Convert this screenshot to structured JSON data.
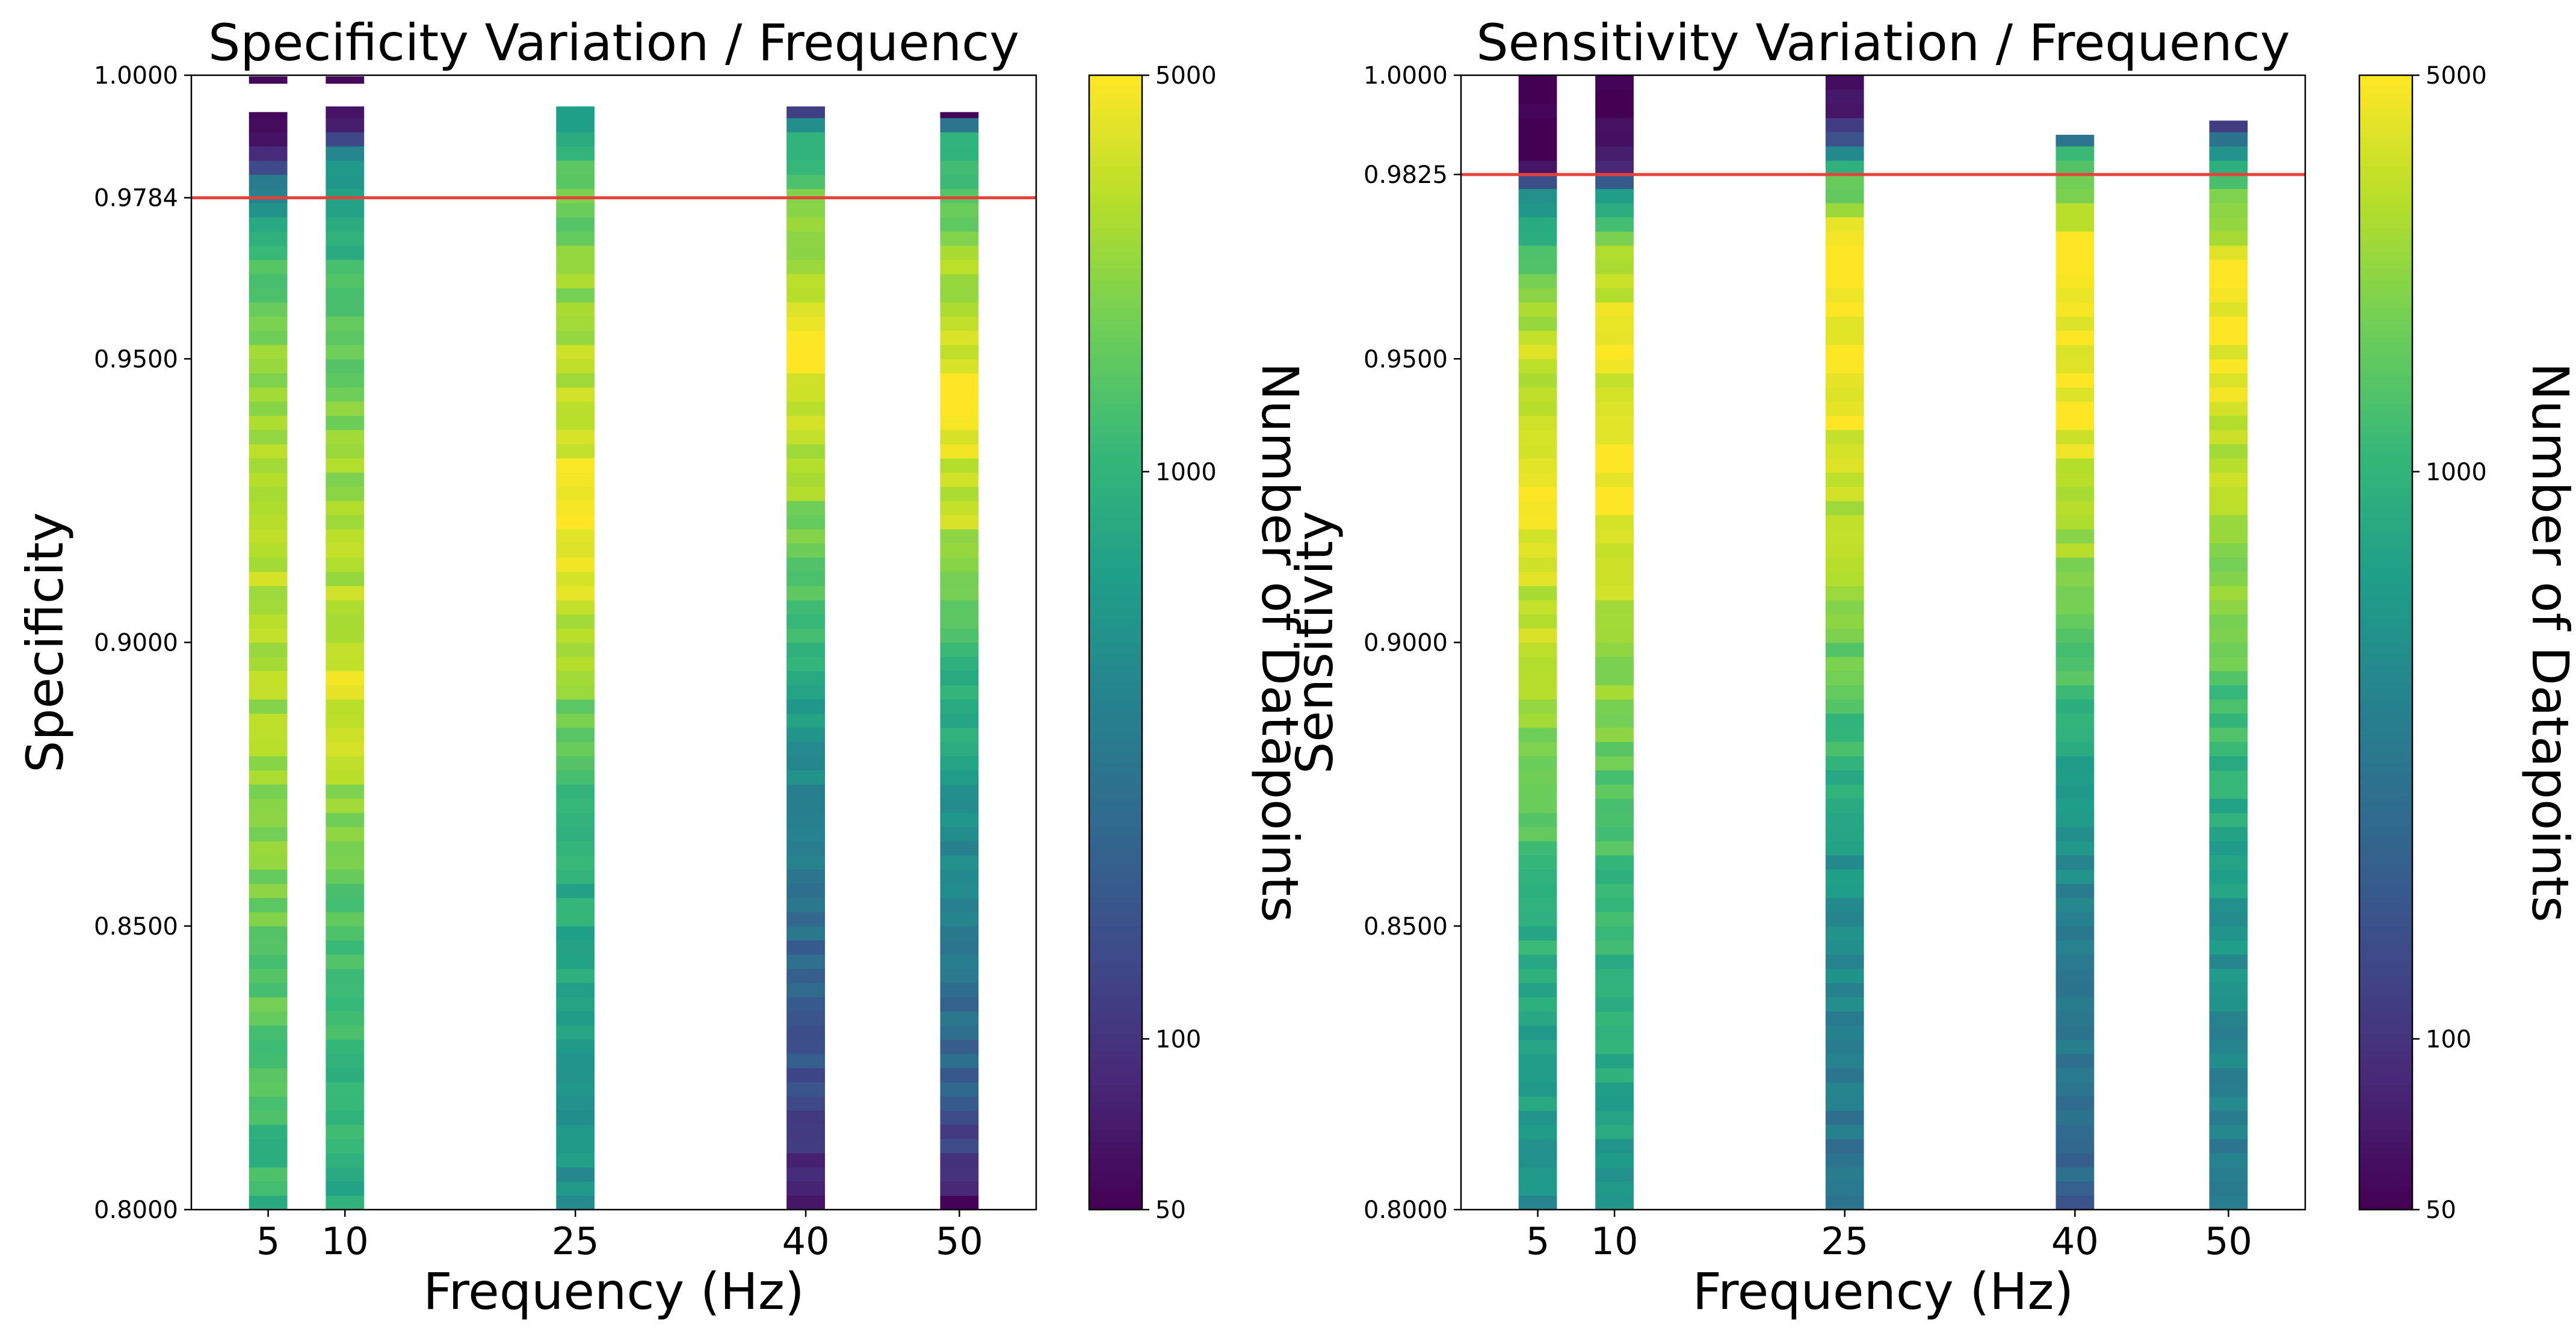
{
  "chart_data": [
    {
      "type": "heatmap",
      "title": "Specificity Variation / Frequency",
      "xlabel": "Frequency (Hz)",
      "ylabel": "Specificity",
      "colorbar_label": "Number of Datapoints",
      "colorbar_scale": "log",
      "colorbar_range": [
        50,
        5000
      ],
      "colorbar_ticks": [
        "50",
        "100",
        "1000",
        "5000"
      ],
      "colormap": "viridis",
      "x_ticks": [
        "5",
        "10",
        "25",
        "40",
        "50"
      ],
      "x_values": [
        5,
        10,
        25,
        40,
        50
      ],
      "xlim": [
        0,
        55
      ],
      "ylim": [
        0.8,
        1.0
      ],
      "y_ticks": [
        "0.8000",
        "0.8500",
        "0.9000",
        "0.9500",
        "0.9784",
        "1.0000"
      ],
      "reference_line": {
        "value": 0.9784,
        "color": "#e8413a"
      },
      "columns": [
        {
          "frequency": 5,
          "bin_width_hz": 2.5,
          "top": 0.9935,
          "count_profile": [
            [
              0.8,
              1000
            ],
            [
              0.85,
              1700
            ],
            [
              0.9,
              3000
            ],
            [
              0.94,
              2800
            ],
            [
              0.97,
              1300
            ],
            [
              0.982,
              300
            ],
            [
              0.987,
              60
            ]
          ],
          "islands": [
            {
              "from": 0.9985,
              "to": 0.9998,
              "count": 55
            }
          ]
        },
        {
          "frequency": 10,
          "bin_width_hz": 2.5,
          "top": 0.9945,
          "count_profile": [
            [
              0.8,
              800
            ],
            [
              0.85,
              1400
            ],
            [
              0.89,
              3800
            ],
            [
              0.93,
              2500
            ],
            [
              0.965,
              1100
            ],
            [
              0.985,
              500
            ],
            [
              0.992,
              70
            ]
          ],
          "islands": [
            {
              "from": 0.9985,
              "to": 0.9998,
              "count": 55
            }
          ]
        },
        {
          "frequency": 25,
          "bin_width_hz": 2.5,
          "top": 0.9945,
          "count_profile": [
            [
              0.8,
              500
            ],
            [
              0.87,
              1000
            ],
            [
              0.9,
              2800
            ],
            [
              0.92,
              4800
            ],
            [
              0.95,
              3000
            ],
            [
              0.98,
              1600
            ],
            [
              0.994,
              700
            ]
          ],
          "islands": []
        },
        {
          "frequency": 40,
          "bin_width_hz": 2.5,
          "top": 0.9945,
          "count_profile": [
            [
              0.8,
              60
            ],
            [
              0.82,
              150
            ],
            [
              0.86,
              300
            ],
            [
              0.9,
              1000
            ],
            [
              0.93,
              2800
            ],
            [
              0.95,
              5000
            ],
            [
              0.972,
              2500
            ],
            [
              0.99,
              800
            ],
            [
              0.9945,
              60
            ]
          ],
          "islands": []
        },
        {
          "frequency": 50,
          "bin_width_hz": 2.5,
          "top": 0.9935,
          "count_profile": [
            [
              0.8,
              60
            ],
            [
              0.82,
              200
            ],
            [
              0.86,
              400
            ],
            [
              0.9,
              1200
            ],
            [
              0.92,
              3000
            ],
            [
              0.945,
              4800
            ],
            [
              0.97,
              2200
            ],
            [
              0.99,
              900
            ],
            [
              0.9935,
              60
            ]
          ],
          "islands": []
        }
      ]
    },
    {
      "type": "heatmap",
      "title": "Sensitivity Variation / Frequency",
      "xlabel": "Frequency (Hz)",
      "ylabel": "Sensitivity",
      "colorbar_label": "Number of Datapoints",
      "colorbar_scale": "log",
      "colorbar_range": [
        50,
        5000
      ],
      "colorbar_ticks": [
        "50",
        "100",
        "1000",
        "5000"
      ],
      "colormap": "viridis",
      "x_ticks": [
        "5",
        "10",
        "25",
        "40",
        "50"
      ],
      "x_values": [
        5,
        10,
        25,
        40,
        50
      ],
      "xlim": [
        0,
        55
      ],
      "ylim": [
        0.8,
        1.0
      ],
      "y_ticks": [
        "0.8000",
        "0.8500",
        "0.9000",
        "0.9500",
        "0.9825",
        "1.0000"
      ],
      "reference_line": {
        "value": 0.9825,
        "color": "#e8413a"
      },
      "columns": [
        {
          "frequency": 5,
          "bin_width_hz": 2.5,
          "top": 1.0,
          "count_profile": [
            [
              0.8,
              500
            ],
            [
              0.86,
              1100
            ],
            [
              0.9,
              3000
            ],
            [
              0.93,
              4500
            ],
            [
              0.96,
              2800
            ],
            [
              0.978,
              600
            ],
            [
              0.984,
              50
            ],
            [
              1.0,
              50
            ]
          ],
          "islands": []
        },
        {
          "frequency": 10,
          "bin_width_hz": 2.5,
          "top": 1.0,
          "count_profile": [
            [
              0.8,
              600
            ],
            [
              0.86,
              1100
            ],
            [
              0.9,
              2600
            ],
            [
              0.93,
              5000
            ],
            [
              0.965,
              3500
            ],
            [
              0.978,
              900
            ],
            [
              0.984,
              60
            ],
            [
              1.0,
              50
            ]
          ],
          "islands": []
        },
        {
          "frequency": 25,
          "bin_width_hz": 2.5,
          "top": 1.0,
          "count_profile": [
            [
              0.8,
              250
            ],
            [
              0.86,
              550
            ],
            [
              0.9,
              1800
            ],
            [
              0.94,
              4500
            ],
            [
              0.97,
              5000
            ],
            [
              0.982,
              1500
            ],
            [
              0.99,
              100
            ],
            [
              1.0,
              50
            ]
          ],
          "islands": []
        },
        {
          "frequency": 40,
          "bin_width_hz": 2.5,
          "top": 0.9895,
          "count_profile": [
            [
              0.8,
              200
            ],
            [
              0.86,
              450
            ],
            [
              0.9,
              1600
            ],
            [
              0.94,
              4500
            ],
            [
              0.97,
              5000
            ],
            [
              0.985,
              1500
            ],
            [
              0.9895,
              300
            ]
          ],
          "islands": []
        },
        {
          "frequency": 50,
          "bin_width_hz": 2.5,
          "top": 0.992,
          "count_profile": [
            [
              0.8,
              300
            ],
            [
              0.86,
              650
            ],
            [
              0.9,
              1700
            ],
            [
              0.94,
              3800
            ],
            [
              0.965,
              5000
            ],
            [
              0.98,
              1600
            ],
            [
              0.99,
              300
            ],
            [
              0.992,
              60
            ]
          ],
          "islands": []
        }
      ]
    }
  ]
}
